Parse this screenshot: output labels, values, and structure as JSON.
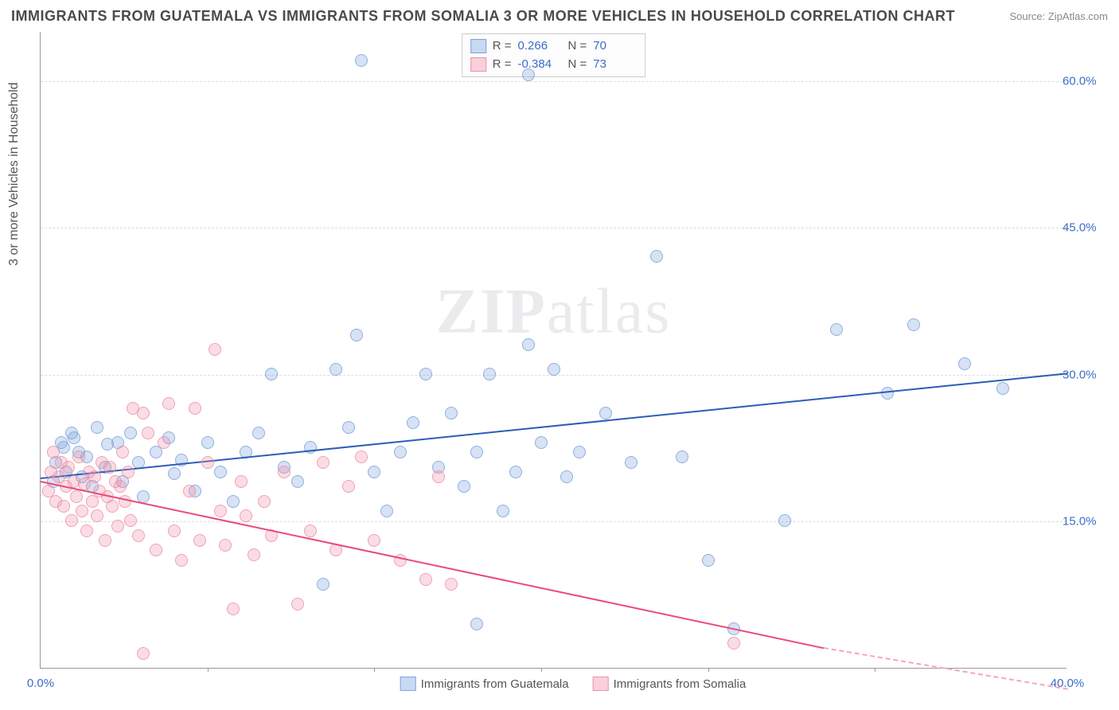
{
  "header": {
    "title": "IMMIGRANTS FROM GUATEMALA VS IMMIGRANTS FROM SOMALIA 3 OR MORE VEHICLES IN HOUSEHOLD CORRELATION CHART",
    "source_label": "Source: ",
    "source_value": "ZipAtlas.com"
  },
  "chart": {
    "type": "scatter",
    "ylabel": "3 or more Vehicles in Household",
    "xlim": [
      0,
      40
    ],
    "ylim": [
      0,
      65
    ],
    "xticks": [
      0,
      40
    ],
    "xtick_labels": [
      "0.0%",
      "40.0%"
    ],
    "xtick_marks": [
      6.5,
      13,
      19.5,
      26,
      32.5
    ],
    "yticks": [
      15,
      30,
      45,
      60
    ],
    "ytick_labels": [
      "15.0%",
      "30.0%",
      "45.0%",
      "60.0%"
    ],
    "grid_color": "#dddddd",
    "axis_color": "#999999",
    "background_color": "#ffffff",
    "tick_color": "#3b6dc9",
    "watermark": "ZIPatlas",
    "series": [
      {
        "name": "Immigrants from Guatemala",
        "color": "#7aa3d9",
        "fill": "rgba(120,160,220,0.35)",
        "line_color": "#2d5db8",
        "R": "0.266",
        "N": "70",
        "regression": {
          "x1": 0,
          "y1": 19.5,
          "x2": 40,
          "y2": 30.2,
          "dash_from": 40
        },
        "points": [
          [
            0.5,
            19
          ],
          [
            0.6,
            21
          ],
          [
            0.8,
            23
          ],
          [
            0.9,
            22.5
          ],
          [
            1.0,
            20
          ],
          [
            1.2,
            24
          ],
          [
            1.3,
            23.5
          ],
          [
            1.5,
            22
          ],
          [
            1.6,
            19.5
          ],
          [
            1.8,
            21.5
          ],
          [
            2.0,
            18.5
          ],
          [
            2.2,
            24.5
          ],
          [
            2.5,
            20.5
          ],
          [
            2.6,
            22.8
          ],
          [
            3.0,
            23
          ],
          [
            3.2,
            19
          ],
          [
            3.5,
            24
          ],
          [
            3.8,
            21
          ],
          [
            4.0,
            17.5
          ],
          [
            4.5,
            22
          ],
          [
            5.0,
            23.5
          ],
          [
            5.2,
            19.8
          ],
          [
            5.5,
            21.2
          ],
          [
            6.0,
            18
          ],
          [
            6.5,
            23
          ],
          [
            7.0,
            20
          ],
          [
            7.5,
            17
          ],
          [
            8.0,
            22
          ],
          [
            8.5,
            24
          ],
          [
            9.0,
            30
          ],
          [
            9.5,
            20.5
          ],
          [
            10.0,
            19
          ],
          [
            10.5,
            22.5
          ],
          [
            11.0,
            8.5
          ],
          [
            11.5,
            30.5
          ],
          [
            12.0,
            24.5
          ],
          [
            12.3,
            34
          ],
          [
            15,
            30
          ],
          [
            12.5,
            62
          ],
          [
            13.0,
            20
          ],
          [
            13.5,
            16
          ],
          [
            14.0,
            22
          ],
          [
            14.5,
            25
          ],
          [
            15.5,
            20.5
          ],
          [
            16.0,
            26
          ],
          [
            16.5,
            18.5
          ],
          [
            17.0,
            22
          ],
          [
            17.5,
            30
          ],
          [
            18.0,
            16
          ],
          [
            18.5,
            20
          ],
          [
            19.0,
            33
          ],
          [
            19.5,
            23
          ],
          [
            20.0,
            30.5
          ],
          [
            20.5,
            19.5
          ],
          [
            21.0,
            22
          ],
          [
            22.0,
            26
          ],
          [
            23.0,
            21
          ],
          [
            24.0,
            42
          ],
          [
            25.0,
            21.5
          ],
          [
            26.0,
            11
          ],
          [
            27.0,
            4
          ],
          [
            17,
            4.5
          ],
          [
            29.0,
            15
          ],
          [
            31.0,
            34.5
          ],
          [
            33.0,
            28
          ],
          [
            34.0,
            35
          ],
          [
            36.0,
            31
          ],
          [
            37.5,
            28.5
          ],
          [
            19,
            60.5
          ]
        ]
      },
      {
        "name": "Immigrants from Somalia",
        "color": "#f08fa6",
        "fill": "rgba(240,140,165,0.35)",
        "line_color": "#e94b7a",
        "R": "-0.384",
        "N": "73",
        "regression": {
          "x1": 0,
          "y1": 19.2,
          "x2": 30.5,
          "y2": 2.2,
          "dash_to": 40,
          "dash_y2": -2
        },
        "points": [
          [
            0.3,
            18
          ],
          [
            0.4,
            20
          ],
          [
            0.5,
            22
          ],
          [
            0.6,
            17
          ],
          [
            0.7,
            19.5
          ],
          [
            0.8,
            21
          ],
          [
            0.9,
            16.5
          ],
          [
            1.0,
            18.5
          ],
          [
            1.1,
            20.5
          ],
          [
            1.2,
            15
          ],
          [
            1.3,
            19
          ],
          [
            1.4,
            17.5
          ],
          [
            1.5,
            21.5
          ],
          [
            1.6,
            16
          ],
          [
            1.7,
            18.8
          ],
          [
            1.8,
            14
          ],
          [
            1.9,
            20
          ],
          [
            2.0,
            17
          ],
          [
            2.1,
            19.5
          ],
          [
            2.2,
            15.5
          ],
          [
            2.3,
            18
          ],
          [
            2.4,
            21
          ],
          [
            2.5,
            13
          ],
          [
            2.6,
            17.5
          ],
          [
            2.7,
            20.5
          ],
          [
            2.8,
            16.5
          ],
          [
            2.9,
            19
          ],
          [
            3.0,
            14.5
          ],
          [
            3.1,
            18.5
          ],
          [
            3.2,
            22
          ],
          [
            3.3,
            17
          ],
          [
            3.4,
            20
          ],
          [
            3.5,
            15
          ],
          [
            3.6,
            26.5
          ],
          [
            3.8,
            13.5
          ],
          [
            4.0,
            26
          ],
          [
            4.2,
            24
          ],
          [
            4.5,
            12
          ],
          [
            4.8,
            23
          ],
          [
            5.0,
            27
          ],
          [
            5.2,
            14
          ],
          [
            5.5,
            11
          ],
          [
            5.8,
            18
          ],
          [
            6.0,
            26.5
          ],
          [
            6.2,
            13
          ],
          [
            6.5,
            21
          ],
          [
            6.8,
            32.5
          ],
          [
            7.0,
            16
          ],
          [
            7.2,
            12.5
          ],
          [
            7.5,
            6
          ],
          [
            7.8,
            19
          ],
          [
            8.0,
            15.5
          ],
          [
            8.3,
            11.5
          ],
          [
            8.7,
            17
          ],
          [
            9.0,
            13.5
          ],
          [
            9.5,
            20
          ],
          [
            10.0,
            6.5
          ],
          [
            10.5,
            14
          ],
          [
            11.0,
            21
          ],
          [
            11.5,
            12
          ],
          [
            12.0,
            18.5
          ],
          [
            12.5,
            21.5
          ],
          [
            13.0,
            13
          ],
          [
            4.0,
            1.5
          ],
          [
            14.0,
            11
          ],
          [
            15.0,
            9
          ],
          [
            15.5,
            19.5
          ],
          [
            16.0,
            8.5
          ],
          [
            27,
            2.5
          ]
        ]
      }
    ]
  },
  "stat_legend": {
    "r_label": "R =",
    "n_label": "N ="
  },
  "bottom_legend": {
    "items": [
      "Immigrants from Guatemala",
      "Immigrants from Somalia"
    ]
  }
}
